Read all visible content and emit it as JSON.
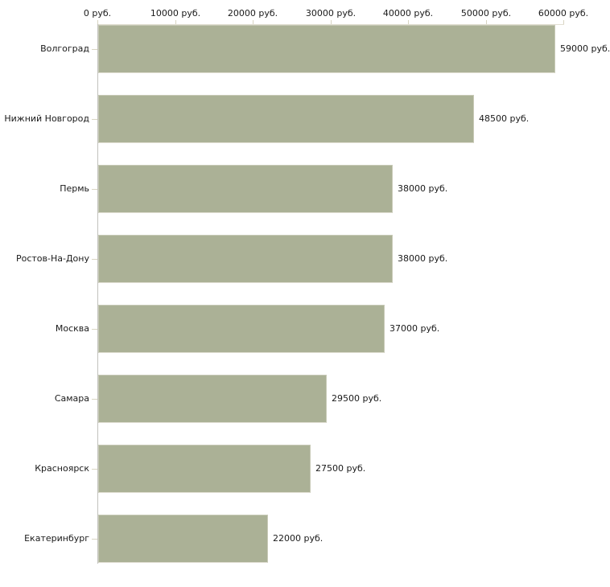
{
  "chart_data": {
    "type": "bar",
    "orientation": "horizontal",
    "title": "",
    "categories": [
      "Волгоград",
      "Нижний Новгород",
      "Пермь",
      "Ростов-На-Дону",
      "Москва",
      "Самара",
      "Красноярск",
      "Екатеринбург"
    ],
    "values": [
      59000,
      48500,
      38000,
      38000,
      37000,
      29500,
      27500,
      22000
    ],
    "value_labels": [
      "59000 руб.",
      "48500 руб.",
      "38000 руб.",
      "38000 руб.",
      "37000 руб.",
      "29500 руб.",
      "27500 руб.",
      "22000 руб."
    ],
    "unit": "руб.",
    "x_axis": {
      "position": "top",
      "min": 0,
      "max": 60000,
      "ticks": [
        0,
        10000,
        20000,
        30000,
        40000,
        50000,
        60000
      ],
      "tick_labels": [
        "0 руб.",
        "10000 руб.",
        "20000 руб.",
        "30000 руб.",
        "40000 руб.",
        "50000 руб.",
        "60000 руб."
      ]
    },
    "legend": "none",
    "grid": "off",
    "colors": {
      "bar": "#abb196",
      "bar_edge": "#c8cab7",
      "bar_bottom_edge": "#e0ded2",
      "axis_line": "#e2dfd2",
      "tick": "#d8d5c2",
      "y_axis": "#c2c2bd",
      "text": "#1a1a1a",
      "background": "#ffffff"
    }
  }
}
